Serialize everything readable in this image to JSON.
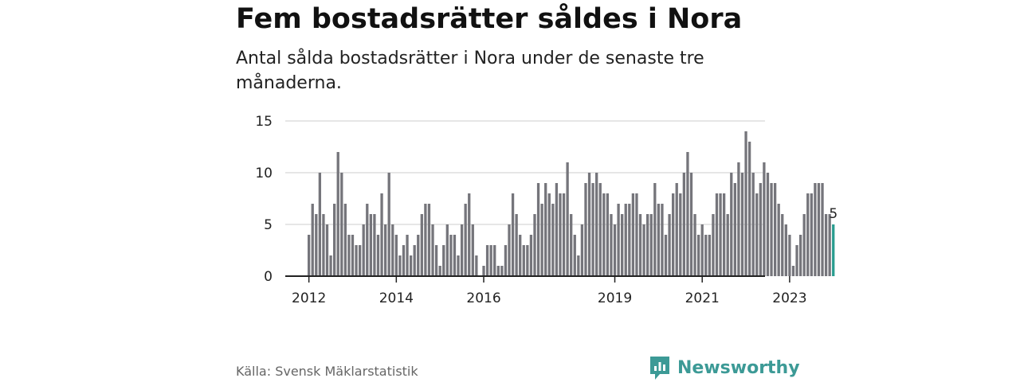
{
  "header": {
    "title": "Fem bostadsrätter såldes i Nora",
    "subtitle": "Antal sålda bostadsrätter i Nora under de senaste tre månaderna."
  },
  "footer": {
    "source": "Källa: Svensk Mäklarstatistik",
    "brand": "Newsworthy"
  },
  "colors": {
    "bar": "#75757b",
    "highlight": "#2a9d8f",
    "grid": "#dddddd",
    "axis": "#222222",
    "brand": "#3c9a96"
  },
  "chart_data": {
    "type": "bar",
    "title": "Fem bostadsrätter såldes i Nora",
    "subtitle": "Antal sålda bostadsrätter i Nora under de senaste tre månaderna.",
    "xlabel": "",
    "ylabel": "",
    "ylim": [
      0,
      15
    ],
    "yticks": [
      0,
      5,
      10,
      15
    ],
    "grid": true,
    "legend": "none",
    "x_tick_labels": [
      {
        "label": "2012",
        "index": 0
      },
      {
        "label": "2014",
        "index": 24
      },
      {
        "label": "2016",
        "index": 48
      },
      {
        "label": "2019",
        "index": 84
      },
      {
        "label": "2021",
        "index": 108
      },
      {
        "label": "2023",
        "index": 132
      }
    ],
    "highlight_label": "5",
    "values": [
      4,
      7,
      6,
      10,
      6,
      5,
      2,
      7,
      12,
      10,
      7,
      4,
      4,
      3,
      3,
      5,
      7,
      6,
      6,
      4,
      8,
      5,
      10,
      5,
      4,
      2,
      3,
      4,
      2,
      3,
      4,
      6,
      7,
      7,
      5,
      3,
      1,
      3,
      5,
      4,
      4,
      2,
      5,
      7,
      8,
      5,
      2,
      0,
      1,
      3,
      3,
      3,
      1,
      1,
      3,
      5,
      8,
      6,
      4,
      3,
      3,
      4,
      6,
      9,
      7,
      9,
      8,
      7,
      9,
      8,
      8,
      11,
      6,
      4,
      2,
      5,
      9,
      10,
      9,
      10,
      9,
      8,
      8,
      6,
      5,
      7,
      6,
      7,
      7,
      8,
      8,
      6,
      5,
      6,
      6,
      9,
      7,
      7,
      4,
      6,
      8,
      9,
      8,
      10,
      12,
      10,
      6,
      4,
      5,
      4,
      4,
      6,
      8,
      8,
      8,
      6,
      10,
      9,
      11,
      10,
      14,
      13,
      10,
      8,
      9,
      11,
      10,
      9,
      9,
      7,
      6,
      5,
      4,
      1,
      3,
      4,
      6,
      8,
      8,
      9,
      9,
      9,
      6,
      6,
      5
    ]
  }
}
